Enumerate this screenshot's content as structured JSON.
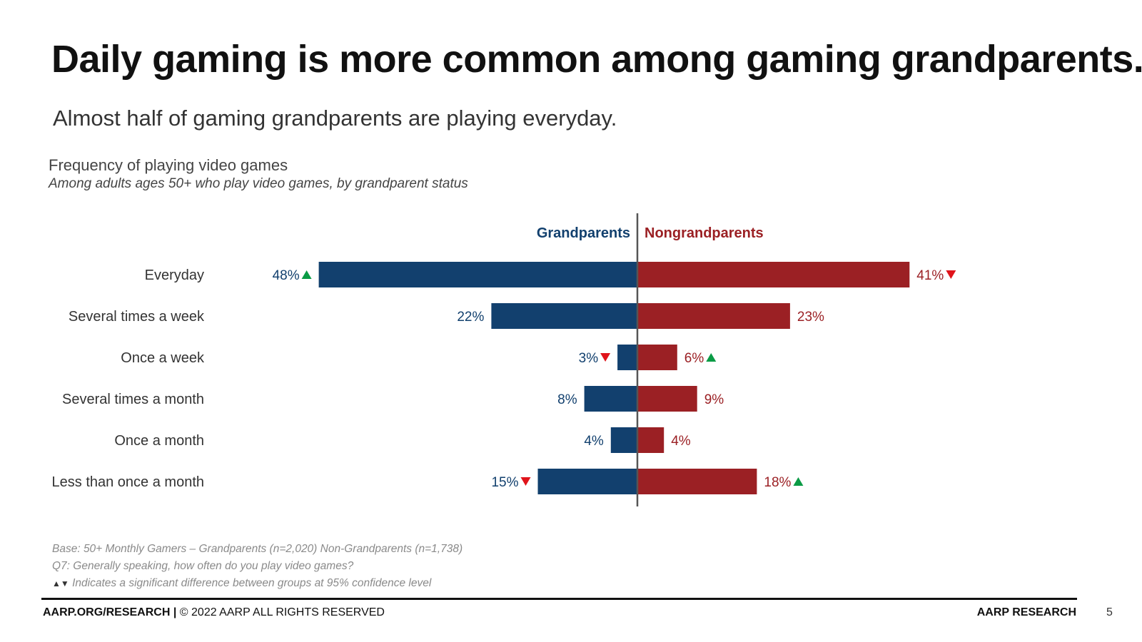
{
  "slide": {
    "title": "Daily gaming is more common among gaming grandparents.",
    "subtitle": "Almost half of gaming grandparents are playing everyday."
  },
  "chart_data": {
    "type": "bar",
    "orientation": "diverging-horizontal",
    "title": "Frequency of playing video games",
    "subtitle": "Among adults ages 50+ who play video games, by grandparent status",
    "categories": [
      "Everyday",
      "Several times a week",
      "Once a week",
      "Several times a month",
      "Once a month",
      "Less than once a month"
    ],
    "series": [
      {
        "name": "Grandparents",
        "color": "#12406e",
        "values": [
          48,
          22,
          3,
          8,
          4,
          15
        ],
        "labels": [
          "48%",
          "22%",
          "3%",
          "8%",
          "4%",
          "15%"
        ],
        "significance": [
          "up",
          "",
          "down",
          "",
          "",
          "down"
        ]
      },
      {
        "name": "Nongrandparents",
        "color": "#9b2024",
        "values": [
          41,
          23,
          6,
          9,
          4,
          18
        ],
        "labels": [
          "41%",
          "23%",
          "6%",
          "9%",
          "4%",
          "18%"
        ],
        "significance": [
          "down",
          "",
          "up",
          "",
          "",
          "up"
        ]
      }
    ],
    "xlim": [
      0,
      50
    ],
    "sig_colors": {
      "up": "#0a9b45",
      "down": "#e0141b"
    }
  },
  "notes": {
    "base": "Base: 50+ Monthly Gamers – Grandparents (n=2,020) Non-Grandparents (n=1,738)",
    "question": "Q7: Generally speaking, how often do you play video games?",
    "sig_symbols": "▲▼",
    "significance": "Indicates a significant difference between groups at 95% confidence level"
  },
  "footer": {
    "site": "AARP.ORG/RESEARCH",
    "separator": " | ",
    "copyright": "© 2022 AARP ALL RIGHTS RESERVED",
    "brand": "AARP RESEARCH",
    "page_number": "5"
  }
}
